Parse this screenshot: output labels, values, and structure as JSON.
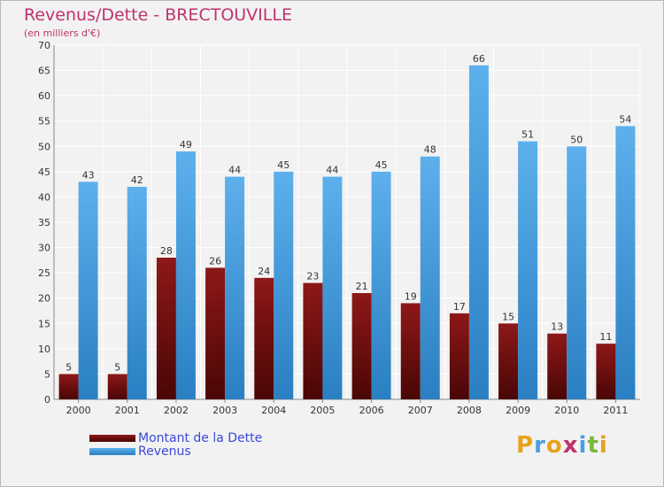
{
  "header": {
    "title": "Revenus/Dette - BRECTOUVILLE",
    "subtitle": "(en milliers d'€)"
  },
  "chart_data": {
    "type": "bar",
    "title": "Revenus/Dette - BRECTOUVILLE",
    "subtitle": "(en milliers d'€)",
    "categories": [
      "2000",
      "2001",
      "2002",
      "2003",
      "2004",
      "2005",
      "2006",
      "2007",
      "2008",
      "2009",
      "2010",
      "2011"
    ],
    "series": [
      {
        "name": "Montant de la Dette",
        "color": "#7a1010",
        "values": [
          5,
          5,
          28,
          26,
          24,
          23,
          21,
          19,
          17,
          15,
          13,
          11
        ]
      },
      {
        "name": "Revenus",
        "color": "#4a9fe0",
        "values": [
          43,
          42,
          49,
          44,
          45,
          44,
          45,
          48,
          66,
          51,
          50,
          54
        ]
      }
    ],
    "ylim": [
      0,
      70
    ],
    "yticks": [
      0,
      5,
      10,
      15,
      20,
      25,
      30,
      35,
      40,
      45,
      50,
      55,
      60,
      65,
      70
    ],
    "grid": true,
    "legend_position": "bottom-left"
  },
  "legend": {
    "items": [
      {
        "label": "Montant de la Dette",
        "color": "#7a1010"
      },
      {
        "label": "Revenus",
        "color": "#4a9fe0"
      }
    ]
  },
  "logo": {
    "letters": [
      "P",
      "r",
      "o",
      "x",
      "i",
      "t",
      "i"
    ],
    "colors": [
      "#e8a21a",
      "#4a9fe0",
      "#e8a21a",
      "#c0336d",
      "#4a9fe0",
      "#7ab83a",
      "#e8a21a"
    ]
  }
}
